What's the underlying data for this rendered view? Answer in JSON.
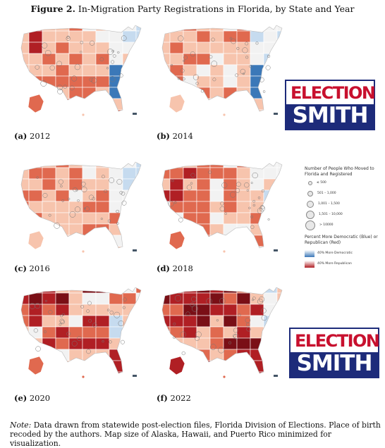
{
  "figure": {
    "label": "Figure 2.",
    "title": "In-Migration Party Registrations in Florida, by State and Year"
  },
  "panels": [
    {
      "id": "a",
      "label": "(a)",
      "year": "2012",
      "intensity": 0.45,
      "east_blue": true
    },
    {
      "id": "b",
      "label": "(b)",
      "year": "2014",
      "intensity": 0.4,
      "east_blue": true
    },
    {
      "id": "c",
      "label": "(c)",
      "year": "2016",
      "intensity": 0.4,
      "east_blue": false
    },
    {
      "id": "d",
      "label": "(d)",
      "year": "2018",
      "intensity": 0.5,
      "east_blue": false
    },
    {
      "id": "e",
      "label": "(e)",
      "year": "2020",
      "intensity": 0.7,
      "east_blue": false
    },
    {
      "id": "f",
      "label": "(f)",
      "year": "2022",
      "intensity": 0.9,
      "east_blue": false
    }
  ],
  "legend": {
    "size_title": "Number of People Who Moved to Florida and Registered",
    "sizes": [
      "≤ 500",
      "501 – 1,000",
      "1,001 – 1,500",
      "1,501 – 10,000",
      "> 10000"
    ],
    "color_title": "Percent More Democratic (Blue) or Republican (Red)",
    "blue_label": "40% More Democratic",
    "red_label": "40% More Republican"
  },
  "logo": {
    "top": "ELECTION",
    "bottom": "SMITH"
  },
  "note": {
    "label": "Note:",
    "text": "Data drawn from statewide post-election files, Florida Division of Elections. Place of birth recoded by the authors. Map size of Alaska, Hawaii, and Puerto Rico minimized for visualization."
  },
  "colors": {
    "dem_strong": "#3b78b8",
    "dem_light": "#c6dbef",
    "neutral": "#f2f2f2",
    "rep_light": "#f7c4ad",
    "rep_mid": "#e0694f",
    "rep_strong": "#b01f24",
    "rep_darkest": "#7a0f16",
    "logo_red": "#c8102e",
    "logo_blue": "#1d2b7a"
  }
}
